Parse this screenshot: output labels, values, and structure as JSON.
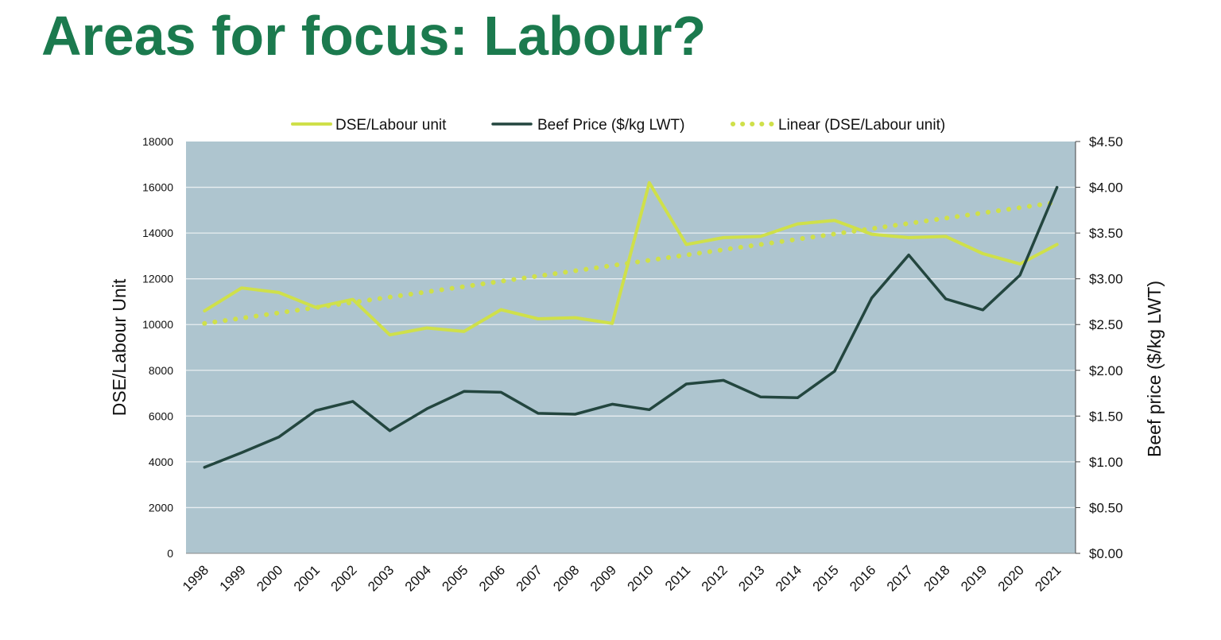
{
  "slide": {
    "title": "Areas for focus: Labour?"
  },
  "colors": {
    "title": "#1b7a4e",
    "plot_background": "#aec5cf",
    "gridline": "#e8eef1",
    "dse_line": "#cfe04a",
    "beef_line": "#23463f",
    "trend_line": "#cfe04a"
  },
  "chart_data": {
    "type": "line",
    "title": "",
    "x": [
      "1998",
      "1999",
      "2000",
      "2001",
      "2002",
      "2003",
      "2004",
      "2005",
      "2006",
      "2007",
      "2008",
      "2009",
      "2010",
      "2011",
      "2012",
      "2013",
      "2014",
      "2015",
      "2016",
      "2017",
      "2018",
      "2019",
      "2020",
      "2021"
    ],
    "ylabel": "DSE/Labour Unit",
    "ylabel_right": "Beef price ($/kg LWT)",
    "ylim": [
      0,
      18000
    ],
    "ylim_right": [
      0,
      4.5
    ],
    "yticks": [
      "0",
      "2000",
      "4000",
      "6000",
      "8000",
      "10000",
      "12000",
      "14000",
      "16000",
      "18000"
    ],
    "yticks_right": [
      "$0.00",
      "$0.50",
      "$1.00",
      "$1.50",
      "$2.00",
      "$2.50",
      "$3.00",
      "$3.50",
      "$4.00",
      "$4.50"
    ],
    "grid": true,
    "legend_position": "top",
    "series": [
      {
        "name": "DSE/Labour unit",
        "axis": "left",
        "style": "solid",
        "values": [
          10600,
          11600,
          11400,
          10750,
          11100,
          9550,
          9850,
          9700,
          10650,
          10250,
          10300,
          10050,
          16200,
          13500,
          13800,
          13850,
          14400,
          14550,
          13950,
          13800,
          13850,
          13100,
          12650,
          13500
        ]
      },
      {
        "name": "Beef Price ($/kg LWT)",
        "axis": "right",
        "style": "solid",
        "values": [
          0.94,
          1.1,
          1.27,
          1.56,
          1.66,
          1.34,
          1.58,
          1.77,
          1.76,
          1.53,
          1.52,
          1.63,
          1.57,
          1.85,
          1.89,
          1.71,
          1.7,
          1.99,
          2.79,
          3.26,
          2.78,
          2.66,
          3.04,
          4.0
        ]
      },
      {
        "name": "Linear (DSE/Labour unit)",
        "axis": "left",
        "style": "dotted",
        "values": [
          10050,
          10280,
          10510,
          10740,
          10970,
          11200,
          11430,
          11660,
          11890,
          12120,
          12350,
          12580,
          12810,
          13040,
          13270,
          13500,
          13730,
          13960,
          14190,
          14420,
          14650,
          14880,
          15110,
          15340
        ]
      }
    ]
  }
}
